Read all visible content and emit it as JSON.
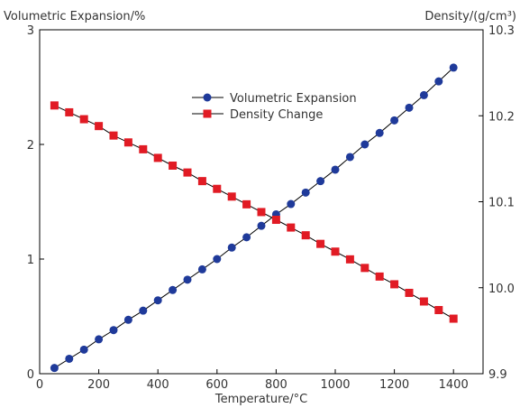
{
  "chart_data": {
    "type": "line",
    "title": "",
    "xlabel": "Temperature/°C",
    "ylabel_left": "Volumetric Expansion/%",
    "ylabel_right": "Density/(g/cm³)",
    "xlim": [
      0,
      1500
    ],
    "ylim_left": [
      0,
      3
    ],
    "ylim_right": [
      9.9,
      10.3
    ],
    "x_ticks": [
      0,
      200,
      400,
      600,
      800,
      1000,
      1200,
      1400
    ],
    "y_left_ticks": [
      0,
      1,
      2,
      3
    ],
    "y_right_ticks": [
      9.9,
      10.0,
      10.1,
      10.2,
      10.3
    ],
    "x_tick_labels": [
      "0",
      "200",
      "400",
      "600",
      "800",
      "1000",
      "1200",
      "1400"
    ],
    "y_left_tick_labels": [
      "0",
      "1",
      "2",
      "3"
    ],
    "y_right_tick_labels": [
      "9.9",
      "10.0",
      "10.1",
      "10.2",
      "10.3"
    ],
    "grid": false,
    "legend_position": "top-center",
    "x": [
      50,
      100,
      150,
      200,
      250,
      300,
      350,
      400,
      450,
      500,
      550,
      600,
      650,
      700,
      750,
      800,
      850,
      900,
      950,
      1000,
      1050,
      1100,
      1150,
      1200,
      1250,
      1300,
      1350,
      1400
    ],
    "series": [
      {
        "name": "Volumetric Expansion",
        "axis": "left",
        "marker": "circle",
        "color": "#1f3a9a",
        "values": [
          0.05,
          0.13,
          0.21,
          0.3,
          0.38,
          0.47,
          0.55,
          0.64,
          0.73,
          0.82,
          0.91,
          1.0,
          1.1,
          1.19,
          1.29,
          1.39,
          1.48,
          1.58,
          1.68,
          1.78,
          1.89,
          2.0,
          2.1,
          2.21,
          2.32,
          2.43,
          2.55,
          2.67
        ]
      },
      {
        "name": "Density Change",
        "axis": "right",
        "marker": "square",
        "color": "#e11b24",
        "values": [
          10.212,
          10.204,
          10.196,
          10.188,
          10.177,
          10.169,
          10.161,
          10.151,
          10.142,
          10.134,
          10.124,
          10.115,
          10.106,
          10.097,
          10.088,
          10.079,
          10.07,
          10.061,
          10.051,
          10.042,
          10.033,
          10.023,
          10.013,
          10.004,
          9.994,
          9.984,
          9.974,
          9.964
        ]
      }
    ]
  }
}
